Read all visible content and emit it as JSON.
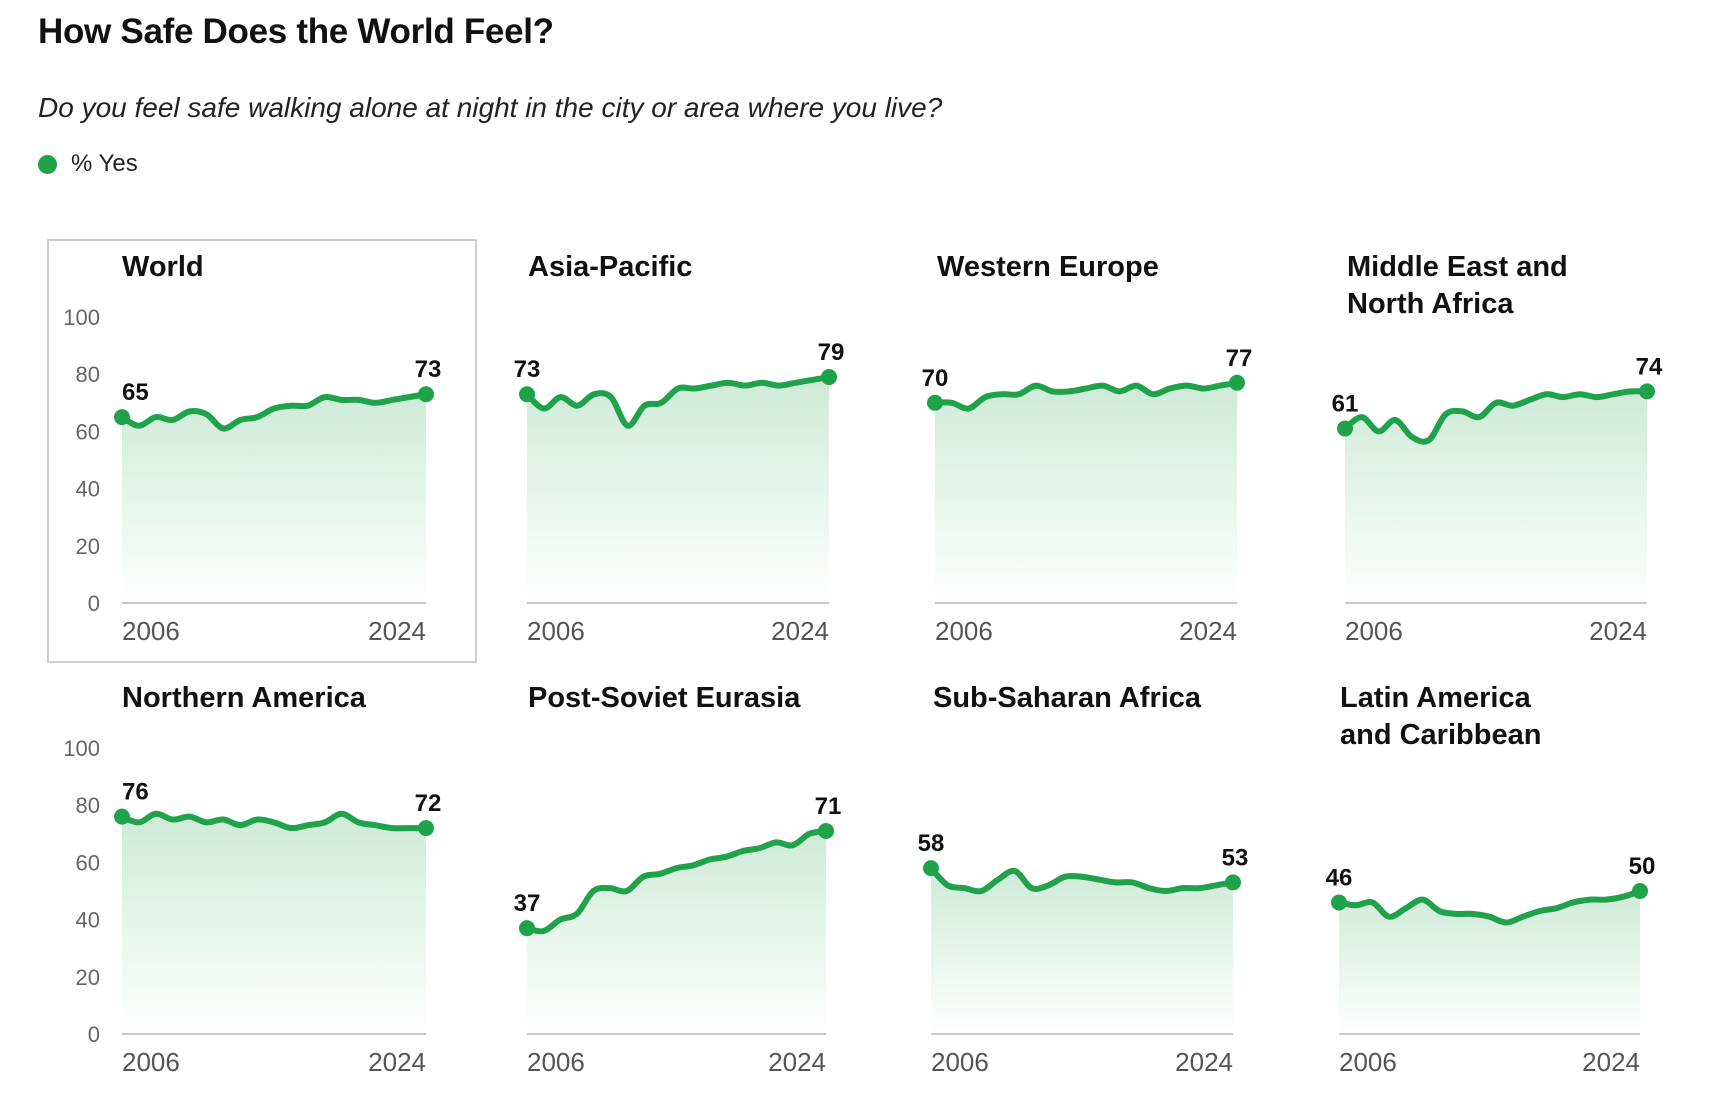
{
  "header": {
    "title": "How Safe Does the World Feel?",
    "subtitle": "Do you feel safe walking alone at night in the city or area where you live?",
    "legend_label": "% Yes"
  },
  "colors": {
    "line": "#1fa24a",
    "fill_top": "#1fa24a",
    "axis": "#c8c8c8",
    "frame": "#cfcfcf"
  },
  "chart_data": [
    {
      "type": "line",
      "title": [
        "World"
      ],
      "ylim": [
        0,
        100
      ],
      "yticks": [
        0,
        20,
        40,
        60,
        80,
        100
      ],
      "xlabels": [
        "2006",
        "2024"
      ],
      "series": [
        {
          "name": "% Yes",
          "x": [
            2006,
            2007,
            2008,
            2009,
            2010,
            2011,
            2012,
            2013,
            2014,
            2015,
            2016,
            2017,
            2018,
            2019,
            2020,
            2021,
            2022,
            2023,
            2024
          ],
          "values": [
            65,
            62,
            65,
            64,
            67,
            66,
            61,
            64,
            65,
            68,
            69,
            69,
            72,
            71,
            71,
            70,
            71,
            72,
            73
          ]
        }
      ],
      "start_label": "65",
      "end_label": "73"
    },
    {
      "type": "line",
      "title": [
        "Asia-Pacific"
      ],
      "ylim": [
        0,
        100
      ],
      "xlabels": [
        "2006",
        "2024"
      ],
      "series": [
        {
          "name": "% Yes",
          "x": [
            2006,
            2007,
            2008,
            2009,
            2010,
            2011,
            2012,
            2013,
            2014,
            2015,
            2016,
            2017,
            2018,
            2019,
            2020,
            2021,
            2022,
            2023,
            2024
          ],
          "values": [
            73,
            68,
            72,
            69,
            73,
            72,
            62,
            69,
            70,
            75,
            75,
            76,
            77,
            76,
            77,
            76,
            77,
            78,
            79
          ]
        }
      ],
      "start_label": "73",
      "end_label": "79"
    },
    {
      "type": "line",
      "title": [
        "Western Europe"
      ],
      "ylim": [
        0,
        100
      ],
      "xlabels": [
        "2006",
        "2024"
      ],
      "series": [
        {
          "name": "% Yes",
          "x": [
            2006,
            2007,
            2008,
            2009,
            2010,
            2011,
            2012,
            2013,
            2014,
            2015,
            2016,
            2017,
            2018,
            2019,
            2020,
            2021,
            2022,
            2023,
            2024
          ],
          "values": [
            70,
            70,
            68,
            72,
            73,
            73,
            76,
            74,
            74,
            75,
            76,
            74,
            76,
            73,
            75,
            76,
            75,
            76,
            77
          ]
        }
      ],
      "start_label": "70",
      "end_label": "77"
    },
    {
      "type": "line",
      "title": [
        "Middle East and",
        "North Africa"
      ],
      "ylim": [
        0,
        100
      ],
      "xlabels": [
        "2006",
        "2024"
      ],
      "series": [
        {
          "name": "% Yes",
          "x": [
            2006,
            2007,
            2008,
            2009,
            2010,
            2011,
            2012,
            2013,
            2014,
            2015,
            2016,
            2017,
            2018,
            2019,
            2020,
            2021,
            2022,
            2023,
            2024
          ],
          "values": [
            61,
            65,
            60,
            64,
            58,
            57,
            66,
            67,
            65,
            70,
            69,
            71,
            73,
            72,
            73,
            72,
            73,
            74,
            74
          ]
        }
      ],
      "start_label": "61",
      "end_label": "74"
    },
    {
      "type": "line",
      "title": [
        "Northern America"
      ],
      "ylim": [
        0,
        100
      ],
      "yticks": [
        0,
        20,
        40,
        60,
        80,
        100
      ],
      "xlabels": [
        "2006",
        "2024"
      ],
      "series": [
        {
          "name": "% Yes",
          "x": [
            2006,
            2007,
            2008,
            2009,
            2010,
            2011,
            2012,
            2013,
            2014,
            2015,
            2016,
            2017,
            2018,
            2019,
            2020,
            2021,
            2022,
            2023,
            2024
          ],
          "values": [
            76,
            74,
            77,
            75,
            76,
            74,
            75,
            73,
            75,
            74,
            72,
            73,
            74,
            77,
            74,
            73,
            72,
            72,
            72
          ]
        }
      ],
      "start_label": "76",
      "end_label": "72"
    },
    {
      "type": "line",
      "title": [
        "Post-Soviet Eurasia"
      ],
      "ylim": [
        0,
        100
      ],
      "xlabels": [
        "2006",
        "2024"
      ],
      "series": [
        {
          "name": "% Yes",
          "x": [
            2006,
            2007,
            2008,
            2009,
            2010,
            2011,
            2012,
            2013,
            2014,
            2015,
            2016,
            2017,
            2018,
            2019,
            2020,
            2021,
            2022,
            2023,
            2024
          ],
          "values": [
            37,
            36,
            40,
            42,
            50,
            51,
            50,
            55,
            56,
            58,
            59,
            61,
            62,
            64,
            65,
            67,
            66,
            70,
            71
          ]
        }
      ],
      "start_label": "37",
      "end_label": "71"
    },
    {
      "type": "line",
      "title": [
        "Sub-Saharan Africa"
      ],
      "ylim": [
        0,
        100
      ],
      "xlabels": [
        "2006",
        "2024"
      ],
      "series": [
        {
          "name": "% Yes",
          "x": [
            2006,
            2007,
            2008,
            2009,
            2010,
            2011,
            2012,
            2013,
            2014,
            2015,
            2016,
            2017,
            2018,
            2019,
            2020,
            2021,
            2022,
            2023,
            2024
          ],
          "values": [
            58,
            52,
            51,
            50,
            54,
            57,
            51,
            52,
            55,
            55,
            54,
            53,
            53,
            51,
            50,
            51,
            51,
            52,
            53
          ]
        }
      ],
      "start_label": "58",
      "end_label": "53"
    },
    {
      "type": "line",
      "title": [
        "Latin America",
        "and Caribbean"
      ],
      "ylim": [
        0,
        100
      ],
      "xlabels": [
        "2006",
        "2024"
      ],
      "series": [
        {
          "name": "% Yes",
          "x": [
            2006,
            2007,
            2008,
            2009,
            2010,
            2011,
            2012,
            2013,
            2014,
            2015,
            2016,
            2017,
            2018,
            2019,
            2020,
            2021,
            2022,
            2023,
            2024
          ],
          "values": [
            46,
            45,
            46,
            41,
            44,
            47,
            43,
            42,
            42,
            41,
            39,
            41,
            43,
            44,
            46,
            47,
            47,
            48,
            50
          ]
        }
      ],
      "start_label": "46",
      "end_label": "50"
    }
  ]
}
